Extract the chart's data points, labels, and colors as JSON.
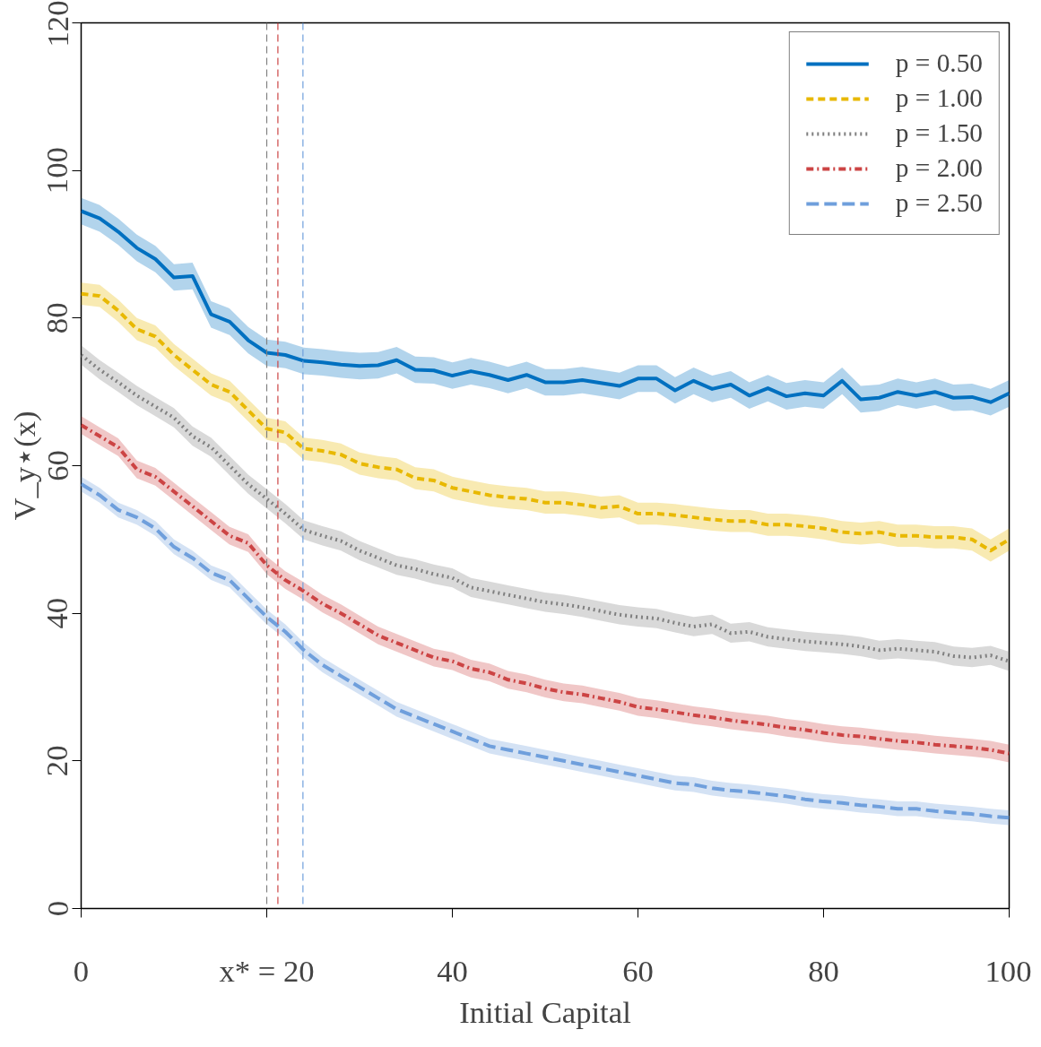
{
  "chart_data": {
    "type": "line",
    "xlabel": "Initial Capital",
    "ylabel": "V_y⋆(x)",
    "x": [
      0,
      2,
      4,
      6,
      8,
      10,
      12,
      14,
      16,
      18,
      20,
      22,
      24,
      26,
      28,
      30,
      32,
      34,
      36,
      38,
      40,
      42,
      44,
      46,
      48,
      50,
      52,
      54,
      56,
      58,
      60,
      62,
      64,
      66,
      68,
      70,
      72,
      74,
      76,
      78,
      80,
      82,
      84,
      86,
      88,
      90,
      92,
      94,
      96,
      98,
      100
    ],
    "xlim": [
      0,
      100
    ],
    "ylim": [
      0,
      120
    ],
    "xticks": [
      0,
      {
        "value": 20,
        "label": "x* = 20"
      },
      40,
      60,
      80,
      100
    ],
    "yticks": [
      0,
      20,
      40,
      60,
      80,
      100,
      120
    ],
    "grid": false,
    "legend": "top right",
    "series": [
      {
        "name": "p = 0.50",
        "color": "#0070c0",
        "line_style": "solid",
        "values": [
          94.5,
          93.5,
          91.7,
          89.5,
          88,
          85.5,
          85.7,
          80.5,
          79.5,
          77,
          75.3,
          75,
          74.2,
          74,
          73.7,
          73.5,
          73.6,
          74.3,
          73,
          72.9,
          72.2,
          72.8,
          72.3,
          71.6,
          72.3,
          71.3,
          71.3,
          71.6,
          71.2,
          70.8,
          71.8,
          71.8,
          70.2,
          71.5,
          70.4,
          71,
          69.5,
          70.5,
          69.4,
          69.8,
          69.5,
          71.5,
          69,
          69.2,
          70,
          69.5,
          70,
          69.2,
          69.3,
          68.6,
          69.8
        ],
        "lower": [
          92.7,
          91.7,
          89.9,
          87.7,
          86.2,
          83.7,
          83.9,
          78.7,
          77.7,
          75.2,
          73.5,
          73.2,
          72.4,
          72.2,
          71.9,
          71.7,
          71.8,
          72.5,
          71.2,
          71.1,
          70.4,
          71,
          70.5,
          69.8,
          70.5,
          69.5,
          69.5,
          69.8,
          69.4,
          69,
          70,
          70,
          68.4,
          69.7,
          68.6,
          69.2,
          67.7,
          68.7,
          67.6,
          68,
          67.7,
          69.7,
          67.2,
          67.4,
          68.2,
          67.7,
          68.2,
          67.4,
          67.5,
          66.8,
          68
        ],
        "upper": [
          96.3,
          95.3,
          93.5,
          91.3,
          89.8,
          87.3,
          87.5,
          82.3,
          81.3,
          78.8,
          77.1,
          76.8,
          76,
          75.8,
          75.5,
          75.3,
          75.4,
          76.1,
          74.8,
          74.7,
          74,
          74.6,
          74.1,
          73.4,
          74.1,
          73.1,
          73.1,
          73.4,
          73,
          72.6,
          73.6,
          73.6,
          72,
          73.3,
          72.2,
          72.8,
          71.3,
          72.3,
          71.2,
          71.6,
          71.3,
          73.3,
          70.8,
          71,
          71.8,
          71.3,
          71.8,
          71,
          71.1,
          70.4,
          71.6
        ]
      },
      {
        "name": "p = 1.00",
        "color": "#e8b800",
        "line_style": "dashed",
        "values": [
          83.3,
          83,
          81,
          78.5,
          77.5,
          75,
          73,
          71,
          70,
          67.5,
          65,
          64.5,
          62.3,
          62,
          61.5,
          60.3,
          59.8,
          59.5,
          58.3,
          58,
          57,
          56.5,
          56,
          55.7,
          55.5,
          55,
          55,
          54.7,
          54.3,
          54.5,
          53.5,
          53.5,
          53.3,
          53,
          52.7,
          52.5,
          52.5,
          52,
          52,
          51.8,
          51.5,
          51,
          50.8,
          51,
          50.5,
          50.5,
          50.3,
          50.3,
          50,
          48.5,
          50
        ],
        "lower": [
          81.8,
          81.5,
          79.5,
          77,
          76,
          73.5,
          71.5,
          69.5,
          68.5,
          66,
          63.5,
          63,
          60.8,
          60.5,
          60,
          58.8,
          58.3,
          58,
          56.8,
          56.5,
          55.5,
          55,
          54.5,
          54.2,
          54,
          53.5,
          53.5,
          53.2,
          52.8,
          53,
          52,
          52,
          51.8,
          51.5,
          51.2,
          51,
          51,
          50.5,
          50.5,
          50.3,
          50,
          49.5,
          49.3,
          49.5,
          49,
          49,
          48.8,
          48.8,
          48.5,
          47,
          48.5
        ],
        "upper": [
          84.8,
          84.5,
          82.5,
          80,
          79,
          76.5,
          74.5,
          72.5,
          71.5,
          69,
          66.5,
          66,
          63.8,
          63.5,
          63,
          61.8,
          61.3,
          61,
          59.8,
          59.5,
          58.5,
          58,
          57.5,
          57.2,
          57,
          56.5,
          56.5,
          56.2,
          55.8,
          56,
          55,
          55,
          54.8,
          54.5,
          54.2,
          54,
          54,
          53.5,
          53.5,
          53.3,
          53,
          52.5,
          52.3,
          52.5,
          52,
          52,
          51.8,
          51.8,
          51.5,
          50,
          51.5
        ]
      },
      {
        "name": "p = 1.50",
        "color": "#808080",
        "line_style": "dotted",
        "values": [
          75,
          73,
          71.3,
          69.5,
          68,
          66.5,
          64,
          62.5,
          60,
          57.5,
          55.5,
          53.5,
          51.3,
          50.5,
          49.8,
          48.5,
          47.5,
          46.5,
          46,
          45.3,
          44.8,
          43.5,
          43,
          42.5,
          42,
          41.5,
          41.2,
          40.8,
          40.3,
          39.8,
          39.5,
          39.3,
          38.7,
          38.2,
          38.5,
          37.3,
          37.5,
          36.8,
          36.5,
          36.2,
          36,
          35.8,
          35.5,
          35,
          35.2,
          35,
          34.8,
          34.2,
          34,
          34.3,
          33.5
        ],
        "lower": [
          73.7,
          71.7,
          70,
          68.2,
          66.7,
          65.2,
          62.7,
          61.2,
          58.7,
          56.2,
          54.2,
          52.2,
          50,
          49.2,
          48.5,
          47.2,
          46.2,
          45.2,
          44.7,
          44,
          43.5,
          42.2,
          41.7,
          41.2,
          40.7,
          40.2,
          39.9,
          39.5,
          39,
          38.5,
          38.2,
          38,
          37.4,
          36.9,
          37.2,
          36,
          36.2,
          35.5,
          35.2,
          34.9,
          34.7,
          34.5,
          34.2,
          33.7,
          33.9,
          33.7,
          33.5,
          32.9,
          32.7,
          33,
          32.2
        ],
        "upper": [
          76.3,
          74.3,
          72.6,
          70.8,
          69.3,
          67.8,
          65.3,
          63.8,
          61.3,
          58.8,
          56.8,
          54.8,
          52.6,
          51.8,
          51.1,
          49.8,
          48.8,
          47.8,
          47.3,
          46.6,
          46.1,
          44.8,
          44.3,
          43.8,
          43.3,
          42.8,
          42.5,
          42.1,
          41.6,
          41.1,
          40.8,
          40.6,
          40,
          39.5,
          39.8,
          38.6,
          38.8,
          38.1,
          37.8,
          37.5,
          37.3,
          37.1,
          36.8,
          36.3,
          36.5,
          36.3,
          36.1,
          35.5,
          35.3,
          35.6,
          34.8
        ]
      },
      {
        "name": "p = 2.00",
        "color": "#cc4444",
        "line_style": "dashdot",
        "values": [
          65.5,
          64,
          62.5,
          59.5,
          58.5,
          56.5,
          54.5,
          52.5,
          50.5,
          49.5,
          46.5,
          44.5,
          43,
          41.3,
          40,
          38.5,
          37,
          36,
          35,
          34,
          33.5,
          32.5,
          32,
          31,
          30.5,
          29.8,
          29.3,
          29,
          28.5,
          28,
          27.3,
          27,
          26.6,
          26.2,
          25.9,
          25.5,
          25.2,
          24.9,
          24.5,
          24.2,
          23.8,
          23.5,
          23.3,
          23,
          22.7,
          22.5,
          22.2,
          22,
          21.8,
          21.5,
          21
        ],
        "lower": [
          64.3,
          62.8,
          61.3,
          58.3,
          57.3,
          55.3,
          53.3,
          51.3,
          49.3,
          48.3,
          45.3,
          43.3,
          41.8,
          40.1,
          38.8,
          37.3,
          35.8,
          34.8,
          33.8,
          32.8,
          32.3,
          31.3,
          30.8,
          29.8,
          29.3,
          28.6,
          28.1,
          27.8,
          27.3,
          26.8,
          26.1,
          25.8,
          25.4,
          25,
          24.7,
          24.3,
          24,
          23.7,
          23.3,
          23,
          22.6,
          22.3,
          22.1,
          21.8,
          21.5,
          21.3,
          21,
          20.8,
          20.6,
          20.3,
          19.8
        ],
        "upper": [
          66.7,
          65.2,
          63.7,
          60.7,
          59.7,
          57.7,
          55.7,
          53.7,
          51.7,
          50.7,
          47.7,
          45.7,
          44.2,
          42.5,
          41.2,
          39.7,
          38.2,
          37.2,
          36.2,
          35.2,
          34.7,
          33.7,
          33.2,
          32.2,
          31.7,
          31,
          30.5,
          30.2,
          29.7,
          29.2,
          28.5,
          28.2,
          27.8,
          27.4,
          27.1,
          26.7,
          26.4,
          26.1,
          25.7,
          25.4,
          25,
          24.7,
          24.5,
          24.2,
          23.9,
          23.7,
          23.4,
          23.2,
          23,
          22.7,
          22.2
        ]
      },
      {
        "name": "p = 2.50",
        "color": "#6f9fdc",
        "line_style": "longdash",
        "values": [
          57.5,
          56,
          54,
          53,
          51.5,
          49,
          47.5,
          45.5,
          44.5,
          42,
          39.5,
          37.5,
          35,
          33,
          31.5,
          30,
          28.5,
          27,
          26,
          25,
          24,
          23,
          22,
          21.5,
          21,
          20.5,
          20,
          19.5,
          19,
          18.5,
          18,
          17.5,
          17,
          16.8,
          16.3,
          16,
          15.8,
          15.5,
          15.2,
          14.8,
          14.5,
          14.3,
          14,
          13.8,
          13.5,
          13.5,
          13.2,
          13,
          12.8,
          12.5,
          12.3
        ],
        "lower": [
          56.5,
          55,
          53,
          52,
          50.5,
          48,
          46.5,
          44.5,
          43.5,
          41,
          38.5,
          36.5,
          34,
          32,
          30.5,
          29,
          27.5,
          26,
          25,
          24,
          23,
          22,
          21,
          20.5,
          20,
          19.5,
          19,
          18.5,
          18,
          17.5,
          17,
          16.5,
          16,
          15.8,
          15.3,
          15,
          14.8,
          14.5,
          14.2,
          13.8,
          13.5,
          13.3,
          13,
          12.8,
          12.5,
          12.5,
          12.2,
          12,
          11.8,
          11.5,
          11.3
        ],
        "upper": [
          58.5,
          57,
          55,
          54,
          52.5,
          50,
          48.5,
          46.5,
          45.5,
          43,
          40.5,
          38.5,
          36,
          34,
          32.5,
          31,
          29.5,
          28,
          27,
          26,
          25,
          24,
          23,
          22.5,
          22,
          21.5,
          21,
          20.5,
          20,
          19.5,
          19,
          18.5,
          18,
          17.8,
          17.3,
          17,
          16.8,
          16.5,
          16.2,
          15.8,
          15.5,
          15.3,
          15,
          14.8,
          14.5,
          14.5,
          14.2,
          14,
          13.8,
          13.5,
          13.3
        ]
      }
    ],
    "ref_lines": [
      {
        "axis": "x",
        "value": 20,
        "color": "#808080",
        "line_style": "dashed"
      },
      {
        "axis": "x",
        "value": 21.2,
        "color": "#cc4444",
        "line_style": "dashed"
      },
      {
        "axis": "x",
        "value": 23.9,
        "color": "#6f9fdc",
        "line_style": "dashed"
      }
    ]
  }
}
